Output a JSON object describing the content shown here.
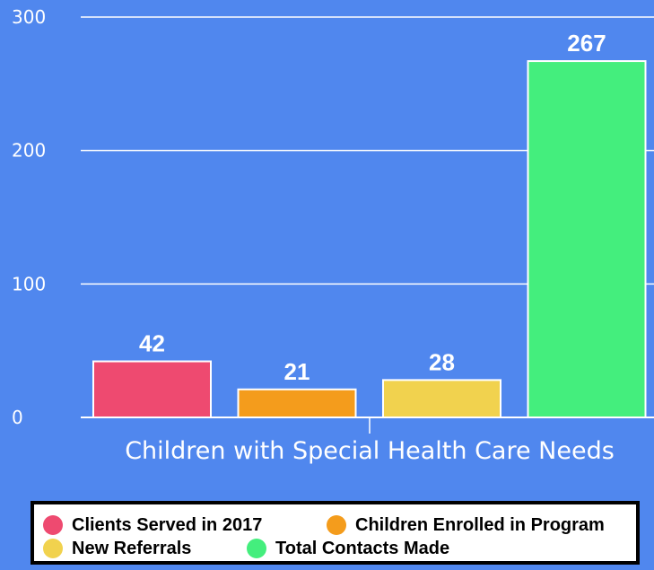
{
  "chart_data": {
    "type": "bar",
    "categories": [
      "Children with Special Health Care Needs"
    ],
    "series": [
      {
        "name": "Clients Served in 2017",
        "values": [
          42
        ],
        "color": "#ee4a70"
      },
      {
        "name": "Children Enrolled in Program",
        "values": [
          21
        ],
        "color": "#f49c1c"
      },
      {
        "name": "New Referrals",
        "values": [
          28
        ],
        "color": "#f1d24e"
      },
      {
        "name": "Total Contacts Made",
        "values": [
          267
        ],
        "color": "#44ee7d"
      }
    ],
    "yticks": [
      "300",
      "200",
      "100",
      "0"
    ],
    "ylim": [
      0,
      300
    ],
    "grid": true,
    "legend_position": "bottom",
    "data_labels": true
  },
  "colors": {
    "background": "#5087ee",
    "gridline": "#ffffff",
    "legend_bg": "#ffffff",
    "legend_border": "#000000"
  }
}
